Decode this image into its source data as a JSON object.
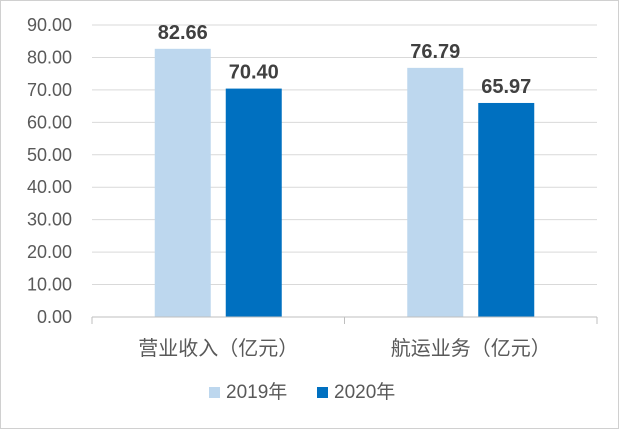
{
  "chart_data": {
    "type": "bar",
    "categories": [
      "营业收入（亿元）",
      "航运业务（亿元）"
    ],
    "series": [
      {
        "name": "2019年",
        "values": [
          82.66,
          76.79
        ],
        "labels": [
          "82.66",
          "76.79"
        ],
        "color": "#bdd7ee"
      },
      {
        "name": "2020年",
        "values": [
          70.4,
          65.97
        ],
        "labels": [
          "70.40",
          "65.97"
        ],
        "color": "#0070c0"
      }
    ],
    "yticks": [
      "0.00",
      "10.00",
      "20.00",
      "30.00",
      "40.00",
      "50.00",
      "60.00",
      "70.00",
      "80.00",
      "90.00"
    ],
    "ylim": [
      0,
      90
    ],
    "grid": true,
    "legend": "bottom",
    "gridColor": "#d9d9d9",
    "axisColor": "#bfbfbf"
  }
}
